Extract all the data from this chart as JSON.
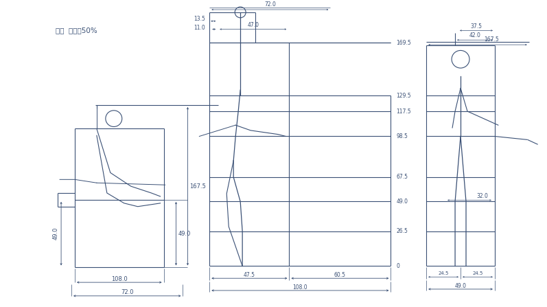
{
  "title_text": "男子  統計率50%",
  "bg_color": "#ffffff",
  "line_color": "#3a5075",
  "text_color": "#3a5075",
  "fig_width": 7.97,
  "fig_height": 4.47,
  "dpi": 100,
  "grid_heights": [
    0,
    26.5,
    49.0,
    67.5,
    98.5,
    117.5,
    129.5,
    169.5
  ],
  "grid_labels": [
    "0",
    "26.5",
    "49.0",
    "67.5",
    "98.5",
    "117.5",
    "129.5",
    "169.5"
  ],
  "left_dims": {
    "h49": "49.0",
    "h167p5": "167.5",
    "w108": "108.0",
    "w72": "72.0"
  },
  "mid_top_dims": {
    "d13p5": "13.5",
    "d11p0": "11.0",
    "d47p0": "47.0",
    "d72p0": "72.0"
  },
  "mid_bot_dims": {
    "d47p5": "47.5",
    "d60p5": "60.5",
    "d108p0": "108.0"
  },
  "right_top_dims": {
    "d167p5": "167.5",
    "d42p0": "42.0",
    "d37p5": "37.5"
  },
  "right_bot_dims": {
    "d24p5a": "24.5",
    "d24p5b": "24.5",
    "d49p0": "49.0"
  },
  "right_mid_dim": "32.0"
}
